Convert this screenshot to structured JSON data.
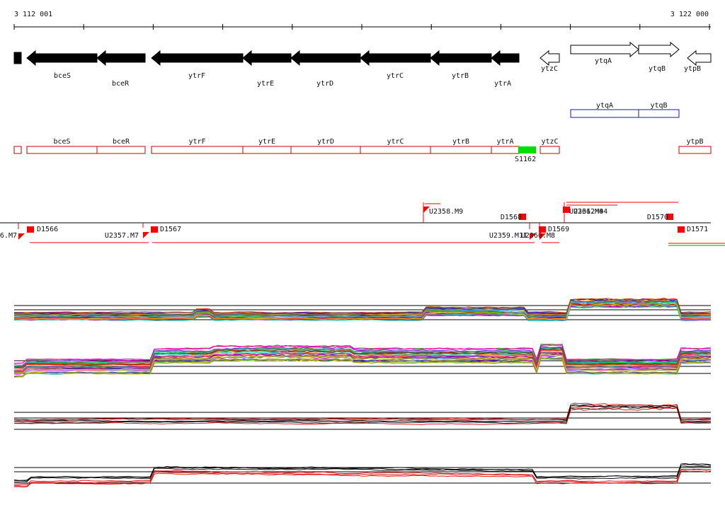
{
  "coordinates": {
    "start_label": "3 112 001",
    "end_label": "3 122 000"
  },
  "genes_strand": [
    {
      "name": "",
      "strand": "-",
      "style": "filled"
    },
    {
      "name": "bceS",
      "strand": "-",
      "style": "filled"
    },
    {
      "name": "bceR",
      "strand": "-",
      "style": "filled"
    },
    {
      "name": "ytrF",
      "strand": "-",
      "style": "filled"
    },
    {
      "name": "ytrE",
      "strand": "-",
      "style": "filled"
    },
    {
      "name": "ytrD",
      "strand": "-",
      "style": "filled"
    },
    {
      "name": "ytrC",
      "strand": "-",
      "style": "filled"
    },
    {
      "name": "ytrB",
      "strand": "-",
      "style": "filled"
    },
    {
      "name": "ytrA",
      "strand": "-",
      "style": "filled"
    },
    {
      "name": "ytzC",
      "strand": "-",
      "style": "outline"
    },
    {
      "name": "ytqA",
      "strand": "+",
      "style": "outline"
    },
    {
      "name": "ytqB",
      "strand": "+",
      "style": "outline"
    },
    {
      "name": "ytpB",
      "strand": "-",
      "style": "outline"
    }
  ],
  "blue_boxes": [
    "ytqA",
    "ytqB"
  ],
  "red_boxes": [
    "",
    "bceS",
    "bceR",
    "ytrF",
    "ytrE",
    "ytrD",
    "ytrC",
    "ytrB",
    "ytrA",
    "ytzC",
    "ytpB"
  ],
  "green_box_label": "S1162",
  "segments": [
    {
      "label": "6.M7"
    },
    {
      "label": "D1566"
    },
    {
      "label": "U2357.M7"
    },
    {
      "label": "D1567"
    },
    {
      "label": "U2358.M9"
    },
    {
      "label": "D1568"
    },
    {
      "label": "U2359.M11"
    },
    {
      "label": "U2360.M8"
    },
    {
      "label": "D1569"
    },
    {
      "label": "U2361.M4"
    },
    {
      "label": "U2362M04"
    },
    {
      "label": "D1570"
    },
    {
      "label": "D1571"
    }
  ],
  "colors": {
    "gene_fill": "#000000",
    "box_red": "#cc0000",
    "box_blue": "#1a1aa6",
    "marker_red": "#ff0000",
    "green_box": "#00dd00",
    "trace_black": "#000000",
    "trace_red": "#dd0000"
  },
  "panels": [
    {
      "name": "expression-panel-1",
      "palette": "multicolor"
    },
    {
      "name": "expression-panel-2",
      "palette": "multicolor"
    },
    {
      "name": "expression-panel-3",
      "palette": "red-black"
    },
    {
      "name": "expression-panel-4",
      "palette": "red-black"
    }
  ]
}
